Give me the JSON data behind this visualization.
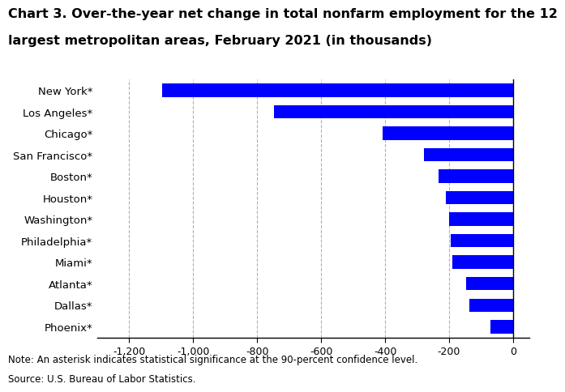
{
  "title_line1": "Chart 3. Over-the-year net change in total nonfarm employment for the 12",
  "title_line2": "largest metropolitan areas, February 2021 (in thousands)",
  "categories": [
    "New York*",
    "Los Angeles*",
    "Chicago*",
    "San Francisco*",
    "Boston*",
    "Houston*",
    "Washington*",
    "Philadelphia*",
    "Miami*",
    "Atlanta*",
    "Dallas*",
    "Phoenix*"
  ],
  "values": [
    -1097,
    -748,
    -408,
    -278,
    -232,
    -211,
    -200,
    -196,
    -191,
    -148,
    -137,
    -72
  ],
  "bar_color": "#0000ff",
  "xlim": [
    -1300,
    50
  ],
  "xticks": [
    -1200,
    -1000,
    -800,
    -600,
    -400,
    -200,
    0
  ],
  "note": "Note: An asterisk indicates statistical significance at the 90-percent confidence level.",
  "source": "Source: U.S. Bureau of Labor Statistics.",
  "background_color": "#ffffff",
  "grid_color": "#b0b0b0",
  "title_fontsize": 11.5,
  "label_fontsize": 9.5,
  "tick_fontsize": 9,
  "note_fontsize": 8.5
}
